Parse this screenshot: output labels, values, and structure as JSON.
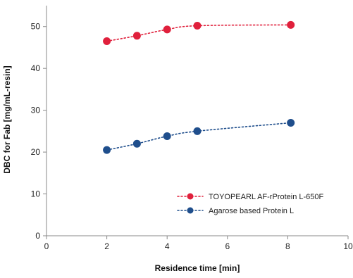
{
  "chart_data": {
    "type": "line",
    "title": "",
    "xlabel": "Residence time [min]",
    "ylabel": "DBC for Fab [mg/mL-resin]",
    "xlim": [
      0,
      10
    ],
    "ylim": [
      0,
      55
    ],
    "xticks": [
      0,
      2,
      4,
      6,
      8,
      10
    ],
    "yticks": [
      0,
      10,
      20,
      30,
      40,
      50
    ],
    "grid": false,
    "legend_position": "lower-right",
    "series": [
      {
        "name": "TOYOPEARL AF-rProtein L-650F",
        "color": "#e0203c",
        "line_style": "dotted",
        "marker": "circle",
        "x": [
          2,
          3,
          4,
          5,
          8.1
        ],
        "y": [
          46.5,
          47.8,
          49.3,
          50.2,
          50.4
        ]
      },
      {
        "name": "Agarose based Protein L",
        "color": "#1f4e8c",
        "line_style": "dotted",
        "marker": "circle",
        "x": [
          2,
          3,
          4,
          5,
          8.1
        ],
        "y": [
          20.5,
          22.0,
          23.8,
          25.0,
          27.0
        ]
      }
    ]
  }
}
